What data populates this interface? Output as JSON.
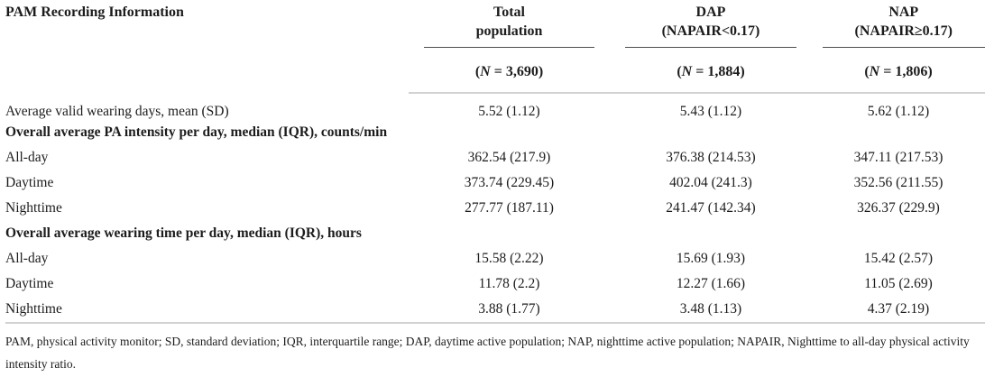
{
  "table": {
    "title_column_header": "PAM Recording Information",
    "columns": [
      {
        "title_line1": "Total",
        "title_line2": "population",
        "n_open": "(",
        "n_symbol": "N",
        "n_rest": " = 3,690)"
      },
      {
        "title_line1": "DAP",
        "title_line2": "(NAPAIR<0.17)",
        "n_open": "(",
        "n_symbol": "N",
        "n_rest": " = 1,884)"
      },
      {
        "title_line1": "NAP",
        "title_line2": "(NAPAIR≥0.17)",
        "n_open": "(",
        "n_symbol": "N",
        "n_rest": " = 1,806)"
      }
    ],
    "rows": [
      {
        "type": "data",
        "label": "Average valid wearing days, mean (SD)",
        "values": [
          "5.52 (1.12)",
          "5.43 (1.12)",
          "5.62 (1.12)"
        ]
      },
      {
        "type": "section",
        "label": "Overall average PA intensity per day, median (IQR), counts/min"
      },
      {
        "type": "data",
        "label": "All-day",
        "values": [
          "362.54 (217.9)",
          "376.38 (214.53)",
          "347.11 (217.53)"
        ]
      },
      {
        "type": "data",
        "label": "Daytime",
        "values": [
          "373.74 (229.45)",
          "402.04 (241.3)",
          "352.56 (211.55)"
        ]
      },
      {
        "type": "data",
        "label": "Nighttime",
        "values": [
          "277.77 (187.11)",
          "241.47 (142.34)",
          "326.37 (229.9)"
        ]
      },
      {
        "type": "section",
        "label": "Overall average wearing time per day, median (IQR), hours"
      },
      {
        "type": "data",
        "label": "All-day",
        "values": [
          "15.58 (2.22)",
          "15.69 (1.93)",
          "15.42 (2.57)"
        ]
      },
      {
        "type": "data",
        "label": "Daytime",
        "values": [
          "11.78 (2.2)",
          "12.27 (1.66)",
          "11.05 (2.69)"
        ]
      },
      {
        "type": "data",
        "label": "Nighttime",
        "values": [
          "3.88 (1.77)",
          "3.48 (1.13)",
          "4.37 (2.19)"
        ]
      }
    ],
    "footnote": "PAM, physical activity monitor; SD, standard deviation; IQR, interquartile range; DAP, daytime active population; NAP, nighttime active population; NAPAIR, Nighttime to all-day physical activity intensity ratio."
  },
  "colors": {
    "text": "#1c1c1c",
    "header_rule": "#4d4d4d",
    "divider_rule": "#d2d2d2",
    "background": "#ffffff"
  }
}
